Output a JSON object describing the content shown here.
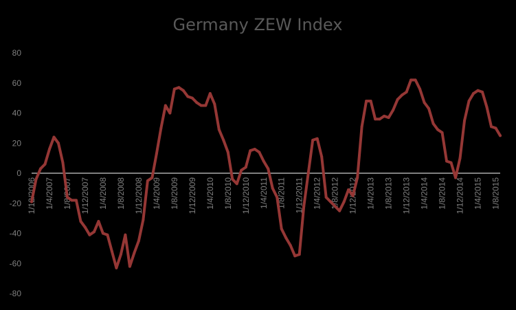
{
  "chart_data": {
    "type": "line",
    "title": "Germany ZEW Index",
    "xlabel": "",
    "ylabel": "",
    "ylim": [
      -80,
      80
    ],
    "yticks": [
      -80,
      -60,
      -40,
      -20,
      0,
      20,
      40,
      60,
      80
    ],
    "grid": false,
    "legend": "none",
    "colors": {
      "background": "#000000",
      "line": "#953735",
      "axis": "#ffffff",
      "text": "#7f7f7f",
      "title": "#595959"
    },
    "x_tick_labels": [
      "1/12/2006",
      "1/4/2007",
      "1/8/2007",
      "1/12/2007",
      "1/4/2008",
      "1/8/2008",
      "1/12/2008",
      "1/4/2009",
      "1/8/2009",
      "1/12/2009",
      "1/4/2010",
      "1/8/2010",
      "1/12/2010",
      "1/4/2011",
      "1/8/2011",
      "1/12/2011",
      "1/4/2012",
      "1/8/2012",
      "1/12/2012",
      "1/4/2013",
      "1/8/2013",
      "1/12/2013",
      "1/4/2014",
      "1/8/2014",
      "1/12/2014",
      "1/4/2015",
      "1/8/2015"
    ],
    "series": [
      {
        "values": [
          -19,
          -4,
          3,
          6,
          16,
          24,
          20,
          7,
          -16,
          -18,
          -18,
          -32,
          -36,
          -41,
          -39,
          -32,
          -40,
          -41,
          -52,
          -63,
          -54,
          -41,
          -62,
          -53,
          -45,
          -31,
          -5,
          -3,
          13,
          30,
          45,
          40,
          56,
          57,
          55,
          51,
          50,
          47,
          45,
          45,
          53,
          46,
          29,
          22,
          14,
          -4,
          -7,
          2,
          4,
          15,
          16,
          14,
          8,
          3,
          -10,
          -16,
          -37,
          -43,
          -48,
          -55,
          -54,
          -22,
          0,
          22,
          23,
          11,
          -16,
          -19,
          -22,
          -25,
          -19,
          -11,
          -15,
          -3,
          31,
          48,
          48,
          36,
          36,
          38,
          37,
          42,
          49,
          52,
          54,
          62,
          62,
          56,
          47,
          43,
          33,
          29,
          27,
          8,
          7,
          -3,
          10,
          35,
          48,
          53,
          55,
          54,
          44,
          31,
          30,
          25
        ]
      }
    ]
  }
}
